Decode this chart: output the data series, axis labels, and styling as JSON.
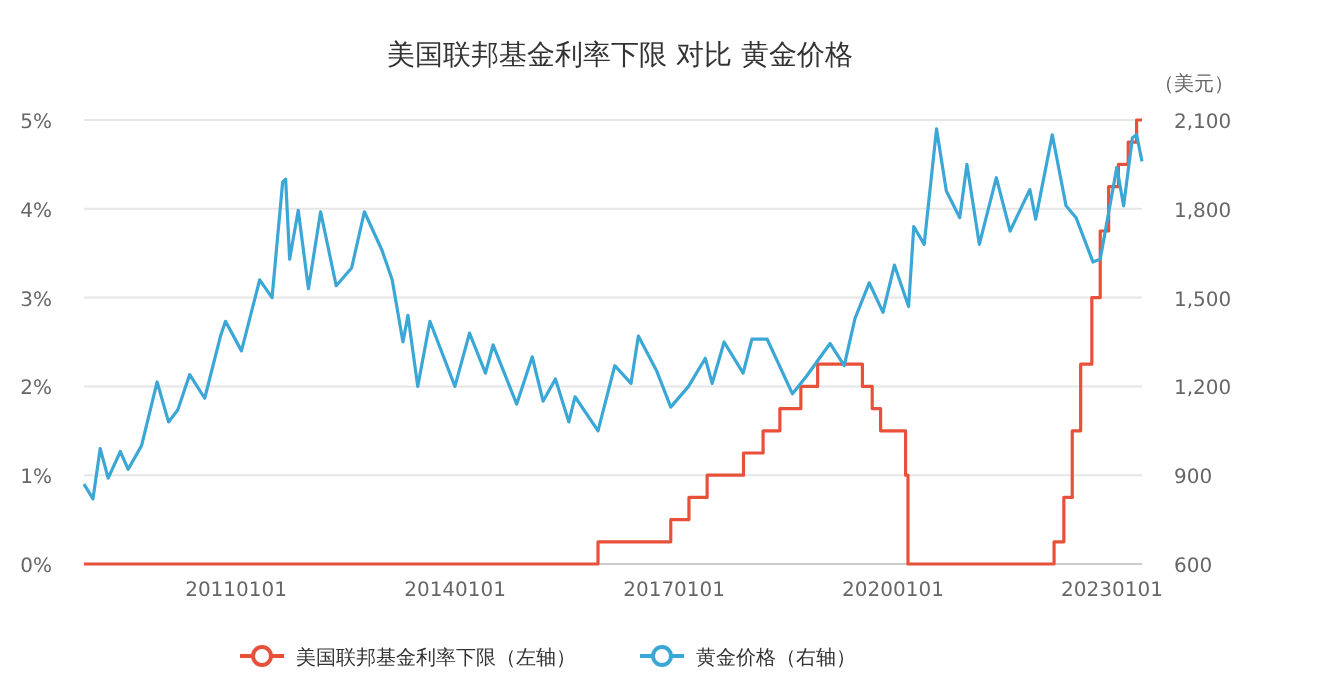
{
  "chart_data": {
    "type": "line",
    "title": "美国联邦基金利率下限 对比 黄金价格",
    "y2label": "（美元）",
    "xlim": [
      "2008-12-01",
      "2023-05-31"
    ],
    "xticks": [
      {
        "value": "2011-01-01",
        "label": "20110101"
      },
      {
        "value": "2014-01-01",
        "label": "20140101"
      },
      {
        "value": "2017-01-01",
        "label": "20170101"
      },
      {
        "value": "2020-01-01",
        "label": "20200101"
      },
      {
        "value": "2023-01-01",
        "label": "20230101"
      }
    ],
    "ylim": [
      0,
      5
    ],
    "yticks": [
      {
        "value": 0,
        "label": "0%"
      },
      {
        "value": 1,
        "label": "1%"
      },
      {
        "value": 2,
        "label": "2%"
      },
      {
        "value": 3,
        "label": "3%"
      },
      {
        "value": 4,
        "label": "4%"
      },
      {
        "value": 5,
        "label": "5%"
      }
    ],
    "y2lim": [
      600,
      2100
    ],
    "y2ticks": [
      {
        "value": 600,
        "label": "600"
      },
      {
        "value": 900,
        "label": "900"
      },
      {
        "value": 1200,
        "label": "1,200"
      },
      {
        "value": 1500,
        "label": "1,500"
      },
      {
        "value": 1800,
        "label": "1,800"
      },
      {
        "value": 2100,
        "label": "2,100"
      }
    ],
    "grid": "y",
    "legend": "bottom",
    "marker": "none",
    "line_style": "solid",
    "series": [
      {
        "name": "美国联邦基金利率下限（左轴）",
        "type": "step",
        "color": "#e8503a",
        "x": [
          "2008-12-01",
          "2015-12-17",
          "2016-12-15",
          "2017-03-16",
          "2017-06-15",
          "2017-12-14",
          "2018-03-22",
          "2018-06-14",
          "2018-09-27",
          "2018-12-20",
          "2019-08-01",
          "2019-09-19",
          "2019-10-31",
          "2020-03-04",
          "2020-03-16",
          "2022-03-17",
          "2022-05-05",
          "2022-06-16",
          "2022-07-28",
          "2022-09-22",
          "2022-11-03",
          "2022-12-15",
          "2023-02-02",
          "2023-03-23",
          "2023-05-04",
          "2023-05-31"
        ],
        "values": [
          0,
          0.25,
          0.5,
          0.75,
          1,
          1.25,
          1.5,
          1.75,
          2,
          2.25,
          2,
          1.75,
          1.5,
          1,
          0,
          0.25,
          0.75,
          1.5,
          2.25,
          3,
          3.75,
          4.25,
          4.5,
          4.75,
          5,
          5
        ]
      },
      {
        "name": "黄金价格（右轴）",
        "axis": "y2",
        "color": "#3aa7d6",
        "x": [
          "2008-12-01",
          "2009-01-15",
          "2009-02-20",
          "2009-04-01",
          "2009-06-01",
          "2009-07-10",
          "2009-09-15",
          "2009-12-02",
          "2010-01-28",
          "2010-03-15",
          "2010-05-14",
          "2010-07-28",
          "2010-10-15",
          "2010-11-09",
          "2011-01-28",
          "2011-04-29",
          "2011-06-30",
          "2011-08-22",
          "2011-09-06",
          "2011-09-26",
          "2011-11-08",
          "2011-12-29",
          "2012-02-28",
          "2012-05-16",
          "2012-08-01",
          "2012-10-04",
          "2012-12-31",
          "2013-02-20",
          "2013-04-15",
          "2013-05-10",
          "2013-06-28",
          "2013-08-28",
          "2013-12-31",
          "2014-03-14",
          "2014-06-02",
          "2014-07-10",
          "2014-11-05",
          "2015-01-22",
          "2015-03-17",
          "2015-05-18",
          "2015-07-24",
          "2015-08-24",
          "2015-12-17",
          "2016-03-10",
          "2016-05-30",
          "2016-07-06",
          "2016-10-07",
          "2016-12-15",
          "2017-03-14",
          "2017-06-06",
          "2017-07-10",
          "2017-09-08",
          "2017-12-12",
          "2018-01-25",
          "2018-04-11",
          "2018-08-16",
          "2018-10-26",
          "2019-02-20",
          "2019-05-02",
          "2019-06-25",
          "2019-09-04",
          "2019-11-12",
          "2020-01-08",
          "2020-03-19",
          "2020-04-14",
          "2020-06-05",
          "2020-08-06",
          "2020-09-24",
          "2020-11-30",
          "2021-01-05",
          "2021-03-08",
          "2021-06-01",
          "2021-08-09",
          "2021-11-16",
          "2021-12-15",
          "2022-03-08",
          "2022-05-16",
          "2022-07-05",
          "2022-09-28",
          "2022-11-03",
          "2023-01-25",
          "2023-02-28",
          "2023-04-13",
          "2023-05-04",
          "2023-05-31"
        ],
        "values": [
          870,
          820,
          990,
          890,
          980,
          920,
          1000,
          1215,
          1080,
          1120,
          1240,
          1160,
          1370,
          1420,
          1320,
          1560,
          1500,
          1890,
          1900,
          1630,
          1795,
          1530,
          1790,
          1540,
          1600,
          1790,
          1660,
          1560,
          1350,
          1440,
          1200,
          1420,
          1200,
          1380,
          1245,
          1340,
          1140,
          1300,
          1150,
          1225,
          1080,
          1165,
          1050,
          1270,
          1210,
          1370,
          1250,
          1130,
          1200,
          1295,
          1210,
          1350,
          1245,
          1360,
          1360,
          1175,
          1235,
          1345,
          1270,
          1430,
          1550,
          1450,
          1610,
          1470,
          1740,
          1680,
          2070,
          1860,
          1770,
          1950,
          1680,
          1905,
          1725,
          1865,
          1765,
          2050,
          1810,
          1770,
          1620,
          1630,
          1940,
          1810,
          2040,
          2050,
          1960
        ]
      }
    ]
  }
}
